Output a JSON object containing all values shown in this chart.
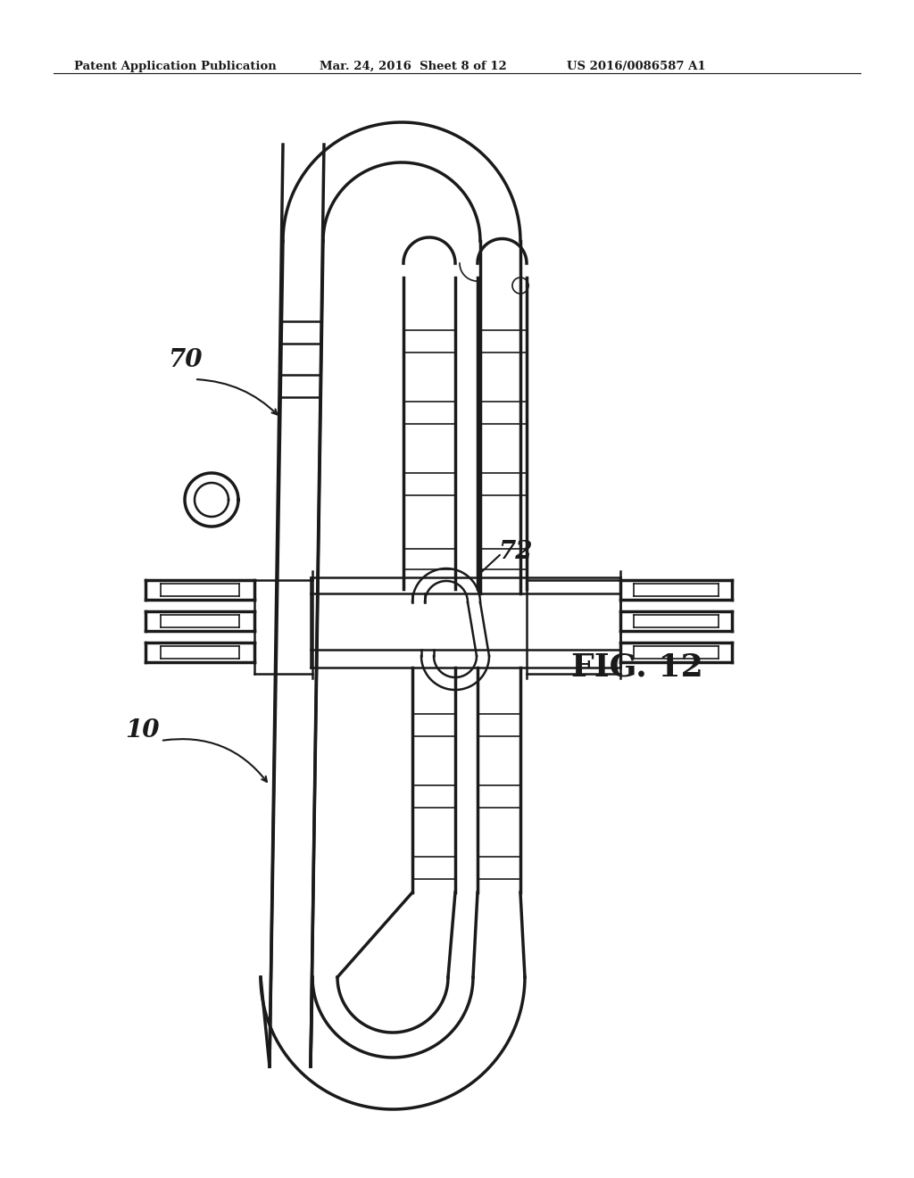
{
  "header_left": "Patent Application Publication",
  "header_center": "Mar. 24, 2016  Sheet 8 of 12",
  "header_right": "US 2016/0086587 A1",
  "fig_label": "FIG. 12",
  "label_70": "70",
  "label_72": "72",
  "label_10": "10",
  "bg_color": "#ffffff",
  "line_color": "#1a1a1a",
  "lw": 1.8,
  "lw_thick": 2.5,
  "lw_thin": 1.2
}
